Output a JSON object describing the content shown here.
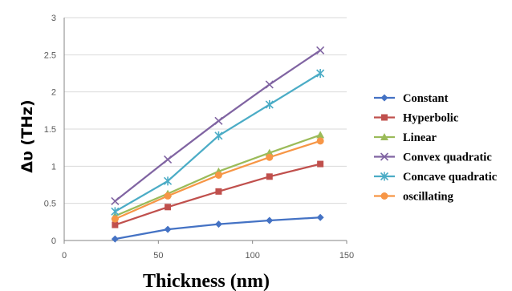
{
  "chart_data": {
    "type": "line",
    "title": "",
    "xlabel": "Thickness (nm)",
    "ylabel": "Δυ (THz)",
    "xlim": [
      0,
      150
    ],
    "ylim": [
      0,
      3
    ],
    "xticks": [
      0,
      50,
      100,
      150
    ],
    "yticks": [
      0,
      0.5,
      1,
      1.5,
      2,
      2.5,
      3
    ],
    "xtick_labels": [
      "0",
      "50",
      "100",
      "150"
    ],
    "ytick_labels": [
      "0",
      "0.5",
      "1",
      "1.5",
      "2",
      "2.5",
      "3"
    ],
    "grid": "horizontal",
    "legend_position": "right",
    "x": [
      27,
      55,
      82,
      109,
      136
    ],
    "series": [
      {
        "name": "Constant",
        "color": "#4472C4",
        "marker": "diamond",
        "values": [
          0.02,
          0.15,
          0.22,
          0.27,
          0.31
        ]
      },
      {
        "name": "Hyperbolic",
        "color": "#C0504D",
        "marker": "square",
        "values": [
          0.21,
          0.45,
          0.66,
          0.86,
          1.03
        ]
      },
      {
        "name": "Linear",
        "color": "#9BBB59",
        "marker": "triangle",
        "values": [
          0.33,
          0.63,
          0.93,
          1.18,
          1.42
        ]
      },
      {
        "name": "Convex quadratic",
        "color": "#8064A2",
        "marker": "x",
        "values": [
          0.53,
          1.09,
          1.61,
          2.1,
          2.56
        ]
      },
      {
        "name": "Concave quadratic",
        "color": "#4BACC6",
        "marker": "star",
        "values": [
          0.39,
          0.8,
          1.41,
          1.83,
          2.25
        ]
      },
      {
        "name": "oscillating",
        "color": "#F79646",
        "marker": "circle",
        "values": [
          0.29,
          0.6,
          0.88,
          1.12,
          1.34
        ]
      }
    ]
  }
}
